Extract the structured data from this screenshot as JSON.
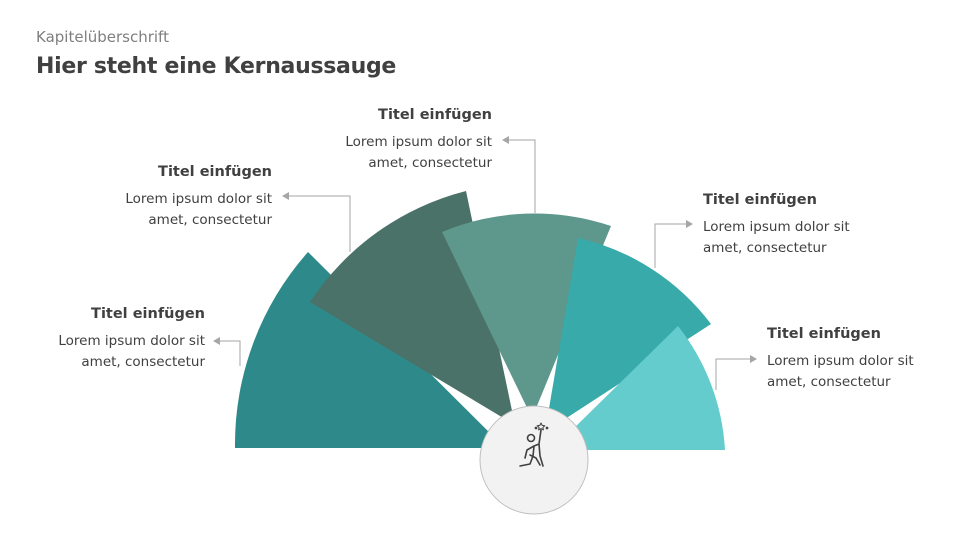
{
  "header": {
    "kicker": "Kapitelüberschrift",
    "title": "Hier steht eine Kernaussauge"
  },
  "segments": [
    {
      "title": "Titel einfügen",
      "line1": "Lorem ipsum dolor sit",
      "line2": "amet, consectetur",
      "color": "#2E8A8A"
    },
    {
      "title": "Titel einfügen",
      "line1": "Lorem ipsum dolor sit",
      "line2": "amet, consectetur",
      "color": "#4A7268"
    },
    {
      "title": "Titel einfügen",
      "line1": "Lorem ipsum dolor sit",
      "line2": "amet, consectetur",
      "color": "#5E978C"
    },
    {
      "title": "Titel einfügen",
      "line1": "Lorem ipsum dolor sit",
      "line2": "amet, consectetur",
      "color": "#38AAAA"
    },
    {
      "title": "Titel einfügen",
      "line1": "Lorem ipsum dolor sit",
      "line2": "amet, consectetur",
      "color": "#64CCCC"
    }
  ],
  "center_icon": "person-reaching-star-icon"
}
